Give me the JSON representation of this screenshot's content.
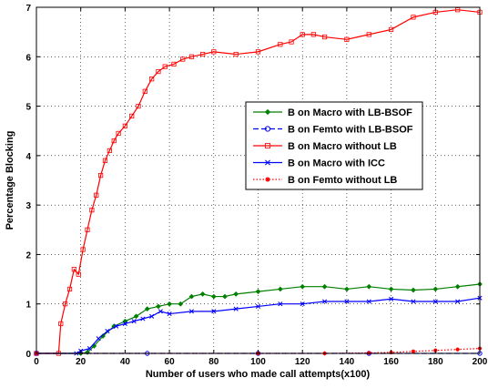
{
  "chart_data": {
    "type": "line",
    "title": "",
    "xlabel": "Number of users who made call attempts(x100)",
    "ylabel": "Percentage Blocking",
    "xlim": [
      0,
      200
    ],
    "ylim": [
      0,
      7
    ],
    "xticks": [
      0,
      20,
      40,
      60,
      80,
      100,
      120,
      140,
      160,
      180,
      200
    ],
    "yticks": [
      0,
      1,
      2,
      3,
      4,
      5,
      6,
      7
    ],
    "grid": true,
    "legend_position": "center-right",
    "series": [
      {
        "name": "B on Macro with LB-BSOF",
        "color": "#008000",
        "linestyle": "solid",
        "marker": "diamond",
        "x": [
          0,
          20,
          23,
          26,
          30,
          35,
          40,
          45,
          50,
          55,
          60,
          65,
          70,
          75,
          80,
          85,
          90,
          100,
          110,
          120,
          130,
          140,
          150,
          160,
          170,
          180,
          190,
          200
        ],
        "y": [
          0,
          0,
          0.02,
          0.15,
          0.35,
          0.55,
          0.65,
          0.75,
          0.9,
          0.95,
          1.0,
          1.0,
          1.15,
          1.2,
          1.15,
          1.15,
          1.2,
          1.25,
          1.3,
          1.35,
          1.35,
          1.3,
          1.35,
          1.3,
          1.28,
          1.3,
          1.35,
          1.4
        ]
      },
      {
        "name": "B on Femto with LB-BSOF",
        "color": "#0000ff",
        "linestyle": "dashed",
        "marker": "circle",
        "x": [
          0,
          50,
          100,
          150,
          200
        ],
        "y": [
          0,
          0,
          0,
          0,
          0
        ]
      },
      {
        "name": "B on Macro without LB",
        "color": "#ff0000",
        "linestyle": "solid",
        "marker": "square",
        "x": [
          0,
          10,
          11,
          13,
          15,
          17,
          19,
          21,
          23,
          25,
          27,
          29,
          31,
          33,
          35,
          37,
          40,
          43,
          46,
          49,
          52,
          55,
          58,
          62,
          66,
          70,
          75,
          80,
          90,
          100,
          110,
          115,
          120,
          125,
          130,
          140,
          150,
          160,
          170,
          180,
          190,
          200
        ],
        "y": [
          0,
          0,
          0.6,
          1.0,
          1.3,
          1.7,
          1.6,
          2.1,
          2.5,
          2.9,
          3.2,
          3.6,
          3.9,
          4.1,
          4.3,
          4.45,
          4.6,
          4.8,
          5.0,
          5.3,
          5.55,
          5.7,
          5.8,
          5.85,
          5.95,
          6.0,
          6.05,
          6.1,
          6.05,
          6.1,
          6.25,
          6.3,
          6.45,
          6.45,
          6.4,
          6.35,
          6.45,
          6.55,
          6.8,
          6.9,
          6.95,
          6.9
        ]
      },
      {
        "name": "B on Macro with ICC",
        "color": "#0000ff",
        "linestyle": "solid",
        "marker": "x",
        "x": [
          0,
          18,
          20,
          24,
          28,
          32,
          36,
          40,
          44,
          48,
          52,
          56,
          60,
          70,
          80,
          90,
          100,
          110,
          120,
          130,
          140,
          150,
          160,
          170,
          180,
          190,
          200
        ],
        "y": [
          0,
          0,
          0.05,
          0.1,
          0.3,
          0.45,
          0.55,
          0.6,
          0.65,
          0.7,
          0.75,
          0.85,
          0.8,
          0.85,
          0.85,
          0.9,
          0.95,
          1.0,
          1.0,
          1.05,
          1.05,
          1.05,
          1.1,
          1.05,
          1.05,
          1.05,
          1.12
        ]
      },
      {
        "name": "B on Femto without LB",
        "color": "#ff0000",
        "linestyle": "dotted",
        "marker": "star",
        "x": [
          0,
          100,
          130,
          150,
          160,
          170,
          180,
          190,
          200
        ],
        "y": [
          0,
          0,
          0,
          0.01,
          0.02,
          0.04,
          0.06,
          0.08,
          0.1
        ]
      }
    ]
  }
}
